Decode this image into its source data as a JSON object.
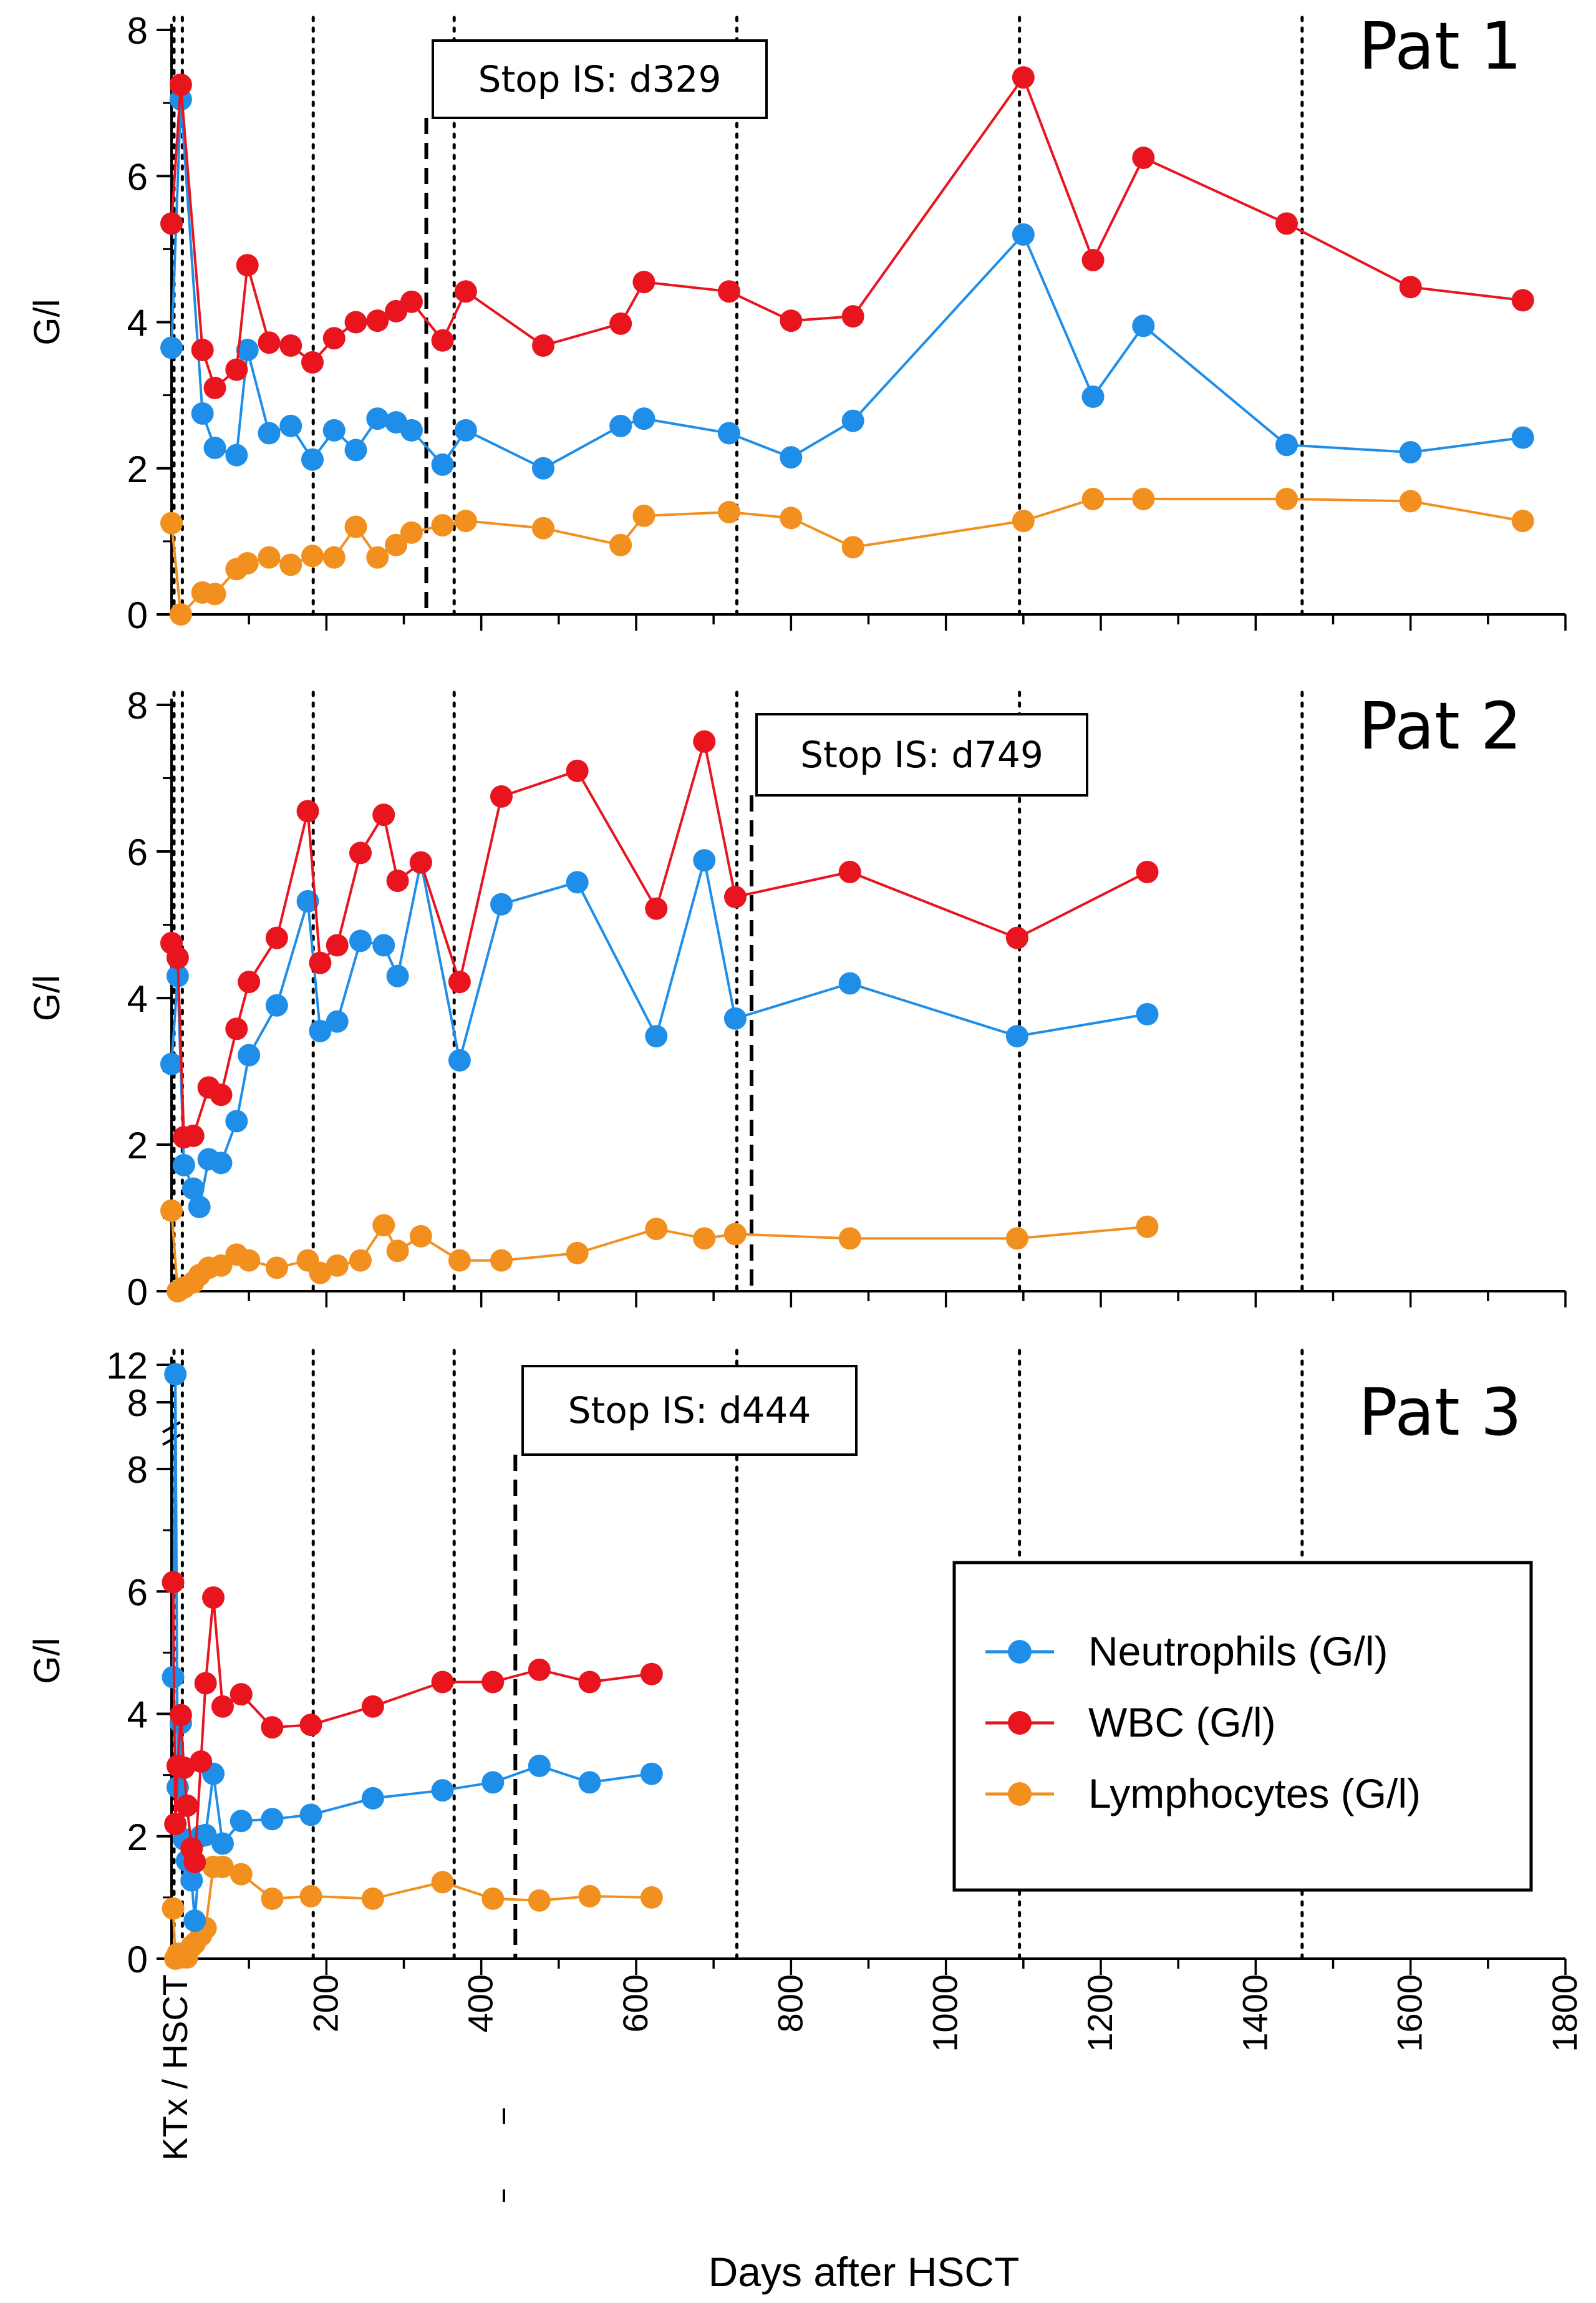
{
  "figure": {
    "x_axis_title": "Days after HSCT",
    "y_axis_title": "G/l",
    "origin_label": "KTx / HSCT",
    "x_ticks": [
      200,
      400,
      600,
      800,
      1000,
      1200,
      1400,
      1600,
      1800
    ],
    "x_lim": [
      0,
      1800
    ],
    "reference_days": [
      14,
      183,
      365,
      730,
      1095,
      1460
    ],
    "legend": [
      "Neutrophils (G/l)",
      "WBC (G/l)",
      "Lymphocytes (G/l)"
    ],
    "colors": {
      "Neutrophils (G/l)": "#1f8ee8",
      "WBC (G/l)": "#e8151e",
      "Lymphocytes (G/l)": "#f2901f"
    }
  },
  "chart_data": [
    {
      "type": "line",
      "title": "Pat 1",
      "xlabel": "Days after HSCT",
      "ylabel": "G/l",
      "ylim": [
        0,
        8
      ],
      "y_ticks": [
        0,
        2,
        4,
        6,
        8
      ],
      "annotation": {
        "text": "Stop IS: d329",
        "day": 329
      },
      "series": [
        {
          "name": "Neutrophils (G/l)",
          "points": [
            [
              0,
              3.65
            ],
            [
              12,
              7.05
            ],
            [
              40,
              2.75
            ],
            [
              56,
              2.28
            ],
            [
              84,
              2.18
            ],
            [
              98,
              3.62
            ],
            [
              126,
              2.48
            ],
            [
              154,
              2.58
            ],
            [
              182,
              2.12
            ],
            [
              210,
              2.52
            ],
            [
              238,
              2.25
            ],
            [
              266,
              2.68
            ],
            [
              290,
              2.63
            ],
            [
              310,
              2.52
            ],
            [
              350,
              2.05
            ],
            [
              380,
              2.52
            ],
            [
              480,
              2.0
            ],
            [
              580,
              2.58
            ],
            [
              610,
              2.68
            ],
            [
              720,
              2.48
            ],
            [
              800,
              2.15
            ],
            [
              880,
              2.65
            ],
            [
              1100,
              5.2
            ],
            [
              1190,
              2.98
            ],
            [
              1255,
              3.95
            ],
            [
              1440,
              2.32
            ],
            [
              1600,
              2.22
            ],
            [
              1745,
              2.42
            ]
          ]
        },
        {
          "name": "WBC (G/l)",
          "points": [
            [
              0,
              5.35
            ],
            [
              12,
              7.25
            ],
            [
              40,
              3.62
            ],
            [
              56,
              3.1
            ],
            [
              84,
              3.35
            ],
            [
              98,
              4.78
            ],
            [
              126,
              3.72
            ],
            [
              154,
              3.68
            ],
            [
              182,
              3.45
            ],
            [
              210,
              3.78
            ],
            [
              238,
              4.0
            ],
            [
              266,
              4.02
            ],
            [
              290,
              4.15
            ],
            [
              310,
              4.28
            ],
            [
              350,
              3.75
            ],
            [
              380,
              4.42
            ],
            [
              480,
              3.68
            ],
            [
              580,
              3.98
            ],
            [
              610,
              4.55
            ],
            [
              720,
              4.42
            ],
            [
              800,
              4.02
            ],
            [
              880,
              4.08
            ],
            [
              1100,
              7.35
            ],
            [
              1190,
              4.85
            ],
            [
              1255,
              6.25
            ],
            [
              1440,
              5.35
            ],
            [
              1600,
              4.48
            ],
            [
              1745,
              4.3
            ]
          ]
        },
        {
          "name": "Lymphocytes (G/l)",
          "points": [
            [
              0,
              1.25
            ],
            [
              12,
              0.0
            ],
            [
              40,
              0.3
            ],
            [
              56,
              0.28
            ],
            [
              84,
              0.62
            ],
            [
              98,
              0.7
            ],
            [
              126,
              0.78
            ],
            [
              154,
              0.68
            ],
            [
              182,
              0.8
            ],
            [
              210,
              0.78
            ],
            [
              238,
              1.2
            ],
            [
              266,
              0.78
            ],
            [
              290,
              0.95
            ],
            [
              310,
              1.12
            ],
            [
              350,
              1.22
            ],
            [
              380,
              1.28
            ],
            [
              480,
              1.18
            ],
            [
              580,
              0.95
            ],
            [
              610,
              1.35
            ],
            [
              720,
              1.4
            ],
            [
              800,
              1.32
            ],
            [
              880,
              0.92
            ],
            [
              1100,
              1.28
            ],
            [
              1190,
              1.58
            ],
            [
              1255,
              1.58
            ],
            [
              1440,
              1.58
            ],
            [
              1600,
              1.55
            ],
            [
              1745,
              1.28
            ]
          ]
        }
      ]
    },
    {
      "type": "line",
      "title": "Pat 2",
      "xlabel": "Days after HSCT",
      "ylabel": "G/l",
      "ylim": [
        0,
        8
      ],
      "y_ticks": [
        0,
        2,
        4,
        6,
        8
      ],
      "annotation": {
        "text": "Stop IS: d749",
        "day": 749
      },
      "series": [
        {
          "name": "Neutrophils (G/l)",
          "points": [
            [
              0,
              3.1
            ],
            [
              8,
              4.3
            ],
            [
              16,
              1.72
            ],
            [
              28,
              1.4
            ],
            [
              36,
              1.15
            ],
            [
              48,
              1.8
            ],
            [
              64,
              1.75
            ],
            [
              84,
              2.32
            ],
            [
              100,
              3.22
            ],
            [
              136,
              3.9
            ],
            [
              176,
              5.32
            ],
            [
              192,
              3.55
            ],
            [
              214,
              3.68
            ],
            [
              244,
              4.78
            ],
            [
              274,
              4.72
            ],
            [
              292,
              4.3
            ],
            [
              322,
              5.85
            ],
            [
              372,
              3.15
            ],
            [
              426,
              5.28
            ],
            [
              524,
              5.58
            ],
            [
              626,
              3.48
            ],
            [
              688,
              5.88
            ],
            [
              728,
              3.72
            ],
            [
              876,
              4.2
            ],
            [
              1092,
              3.48
            ],
            [
              1260,
              3.78
            ]
          ]
        },
        {
          "name": "WBC (G/l)",
          "points": [
            [
              0,
              4.75
            ],
            [
              8,
              4.55
            ],
            [
              16,
              2.1
            ],
            [
              28,
              2.12
            ],
            [
              48,
              2.78
            ],
            [
              64,
              2.68
            ],
            [
              84,
              3.58
            ],
            [
              100,
              4.22
            ],
            [
              136,
              4.82
            ],
            [
              176,
              6.55
            ],
            [
              192,
              4.48
            ],
            [
              214,
              4.72
            ],
            [
              244,
              5.98
            ],
            [
              274,
              6.5
            ],
            [
              292,
              5.6
            ],
            [
              322,
              5.85
            ],
            [
              372,
              4.22
            ],
            [
              426,
              6.75
            ],
            [
              524,
              7.1
            ],
            [
              626,
              5.22
            ],
            [
              688,
              7.5
            ],
            [
              728,
              5.38
            ],
            [
              876,
              5.72
            ],
            [
              1092,
              4.82
            ],
            [
              1260,
              5.72
            ]
          ]
        },
        {
          "name": "Lymphocytes (G/l)",
          "points": [
            [
              0,
              1.1
            ],
            [
              8,
              0.0
            ],
            [
              16,
              0.05
            ],
            [
              28,
              0.12
            ],
            [
              36,
              0.22
            ],
            [
              48,
              0.32
            ],
            [
              64,
              0.35
            ],
            [
              84,
              0.5
            ],
            [
              100,
              0.42
            ],
            [
              136,
              0.32
            ],
            [
              176,
              0.42
            ],
            [
              192,
              0.25
            ],
            [
              214,
              0.35
            ],
            [
              244,
              0.42
            ],
            [
              274,
              0.9
            ],
            [
              292,
              0.55
            ],
            [
              322,
              0.75
            ],
            [
              372,
              0.42
            ],
            [
              426,
              0.42
            ],
            [
              524,
              0.52
            ],
            [
              626,
              0.85
            ],
            [
              688,
              0.72
            ],
            [
              728,
              0.78
            ],
            [
              876,
              0.72
            ],
            [
              1092,
              0.72
            ],
            [
              1260,
              0.88
            ]
          ]
        }
      ]
    },
    {
      "type": "line",
      "title": "Pat 3",
      "xlabel": "Days after HSCT",
      "ylabel": "G/l",
      "ylim": [
        0,
        12
      ],
      "y_ticks": [
        0,
        2,
        4,
        6,
        8
      ],
      "y_break_ticks": [
        8,
        12
      ],
      "axis_break": "between 8 and 12",
      "annotation": {
        "text": "Stop IS: d444",
        "day": 444
      },
      "series": [
        {
          "name": "Neutrophils (G/l)",
          "points": [
            [
              2,
              4.6
            ],
            [
              5,
              11.0
            ],
            [
              8,
              2.8
            ],
            [
              12,
              3.85
            ],
            [
              16,
              1.95
            ],
            [
              20,
              1.6
            ],
            [
              26,
              1.28
            ],
            [
              30,
              0.62
            ],
            [
              38,
              2.0
            ],
            [
              44,
              2.02
            ],
            [
              54,
              3.02
            ],
            [
              66,
              1.88
            ],
            [
              90,
              2.25
            ],
            [
              130,
              2.28
            ],
            [
              180,
              2.35
            ],
            [
              260,
              2.62
            ],
            [
              350,
              2.75
            ],
            [
              415,
              2.88
            ],
            [
              475,
              3.15
            ],
            [
              540,
              2.88
            ],
            [
              620,
              3.02
            ]
          ]
        },
        {
          "name": "WBC (G/l)",
          "points": [
            [
              2,
              6.15
            ],
            [
              5,
              2.2
            ],
            [
              8,
              3.15
            ],
            [
              12,
              3.98
            ],
            [
              16,
              3.12
            ],
            [
              20,
              2.5
            ],
            [
              26,
              1.8
            ],
            [
              30,
              1.58
            ],
            [
              38,
              3.22
            ],
            [
              44,
              4.5
            ],
            [
              54,
              5.9
            ],
            [
              66,
              4.12
            ],
            [
              90,
              4.32
            ],
            [
              130,
              3.78
            ],
            [
              180,
              3.82
            ],
            [
              260,
              4.12
            ],
            [
              350,
              4.52
            ],
            [
              415,
              4.52
            ],
            [
              475,
              4.72
            ],
            [
              540,
              4.52
            ],
            [
              620,
              4.65
            ]
          ]
        },
        {
          "name": "Lymphocytes (G/l)",
          "points": [
            [
              2,
              0.82
            ],
            [
              5,
              0.0
            ],
            [
              8,
              0.08
            ],
            [
              12,
              0.02
            ],
            [
              16,
              0.04
            ],
            [
              20,
              0.02
            ],
            [
              26,
              0.2
            ],
            [
              30,
              0.25
            ],
            [
              38,
              0.38
            ],
            [
              44,
              0.5
            ],
            [
              54,
              1.5
            ],
            [
              66,
              1.5
            ],
            [
              90,
              1.38
            ],
            [
              130,
              0.98
            ],
            [
              180,
              1.02
            ],
            [
              260,
              0.98
            ],
            [
              350,
              1.25
            ],
            [
              415,
              0.98
            ],
            [
              475,
              0.95
            ],
            [
              540,
              1.02
            ],
            [
              620,
              1.0
            ]
          ]
        }
      ]
    }
  ]
}
